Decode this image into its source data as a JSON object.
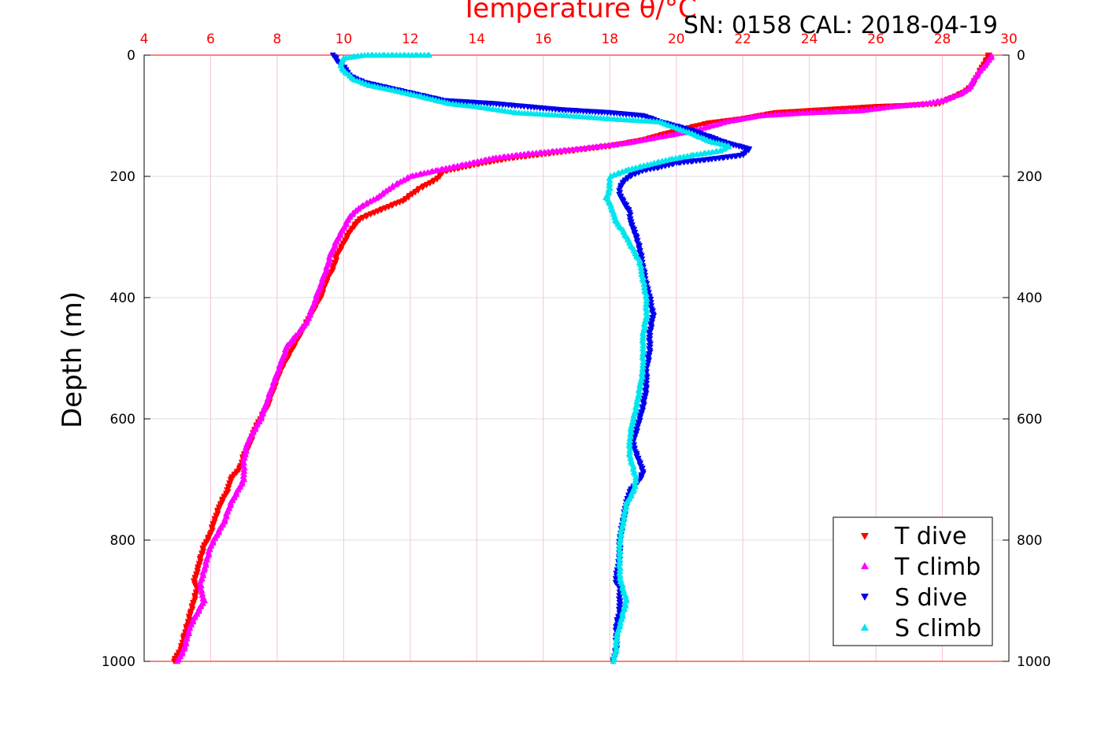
{
  "header": {
    "title": "Temperature θ/°C",
    "serial": "SN: 0158  CAL: 2018-04-19"
  },
  "chart_data": {
    "type": "scatter",
    "title": "Temperature θ/°C",
    "xlabel": "Temperature θ/°C",
    "ylabel": "Depth (m)",
    "xlim": [
      4,
      30
    ],
    "ylim": [
      1000,
      0
    ],
    "x_axis_position": "top",
    "y_axis_reversed": true,
    "grid": true,
    "legend_position": "bottom-right",
    "xticks": [
      "4",
      "6",
      "8",
      "10",
      "12",
      "14",
      "16",
      "18",
      "20",
      "22",
      "24",
      "26",
      "28",
      "30"
    ],
    "yticks": [
      "0",
      "200",
      "400",
      "600",
      "800",
      "1000"
    ],
    "colors": {
      "axis": "#ff0000",
      "grid": "#f4c4d8",
      "hgrid": "#dddddd"
    },
    "series": [
      {
        "name": "T dive",
        "color": "#ff0000",
        "marker": "triangle-down",
        "points": [
          [
            29.4,
            0
          ],
          [
            29.3,
            10
          ],
          [
            29.1,
            30
          ],
          [
            28.9,
            50
          ],
          [
            28.7,
            60
          ],
          [
            28.3,
            70
          ],
          [
            27.9,
            80
          ],
          [
            27.0,
            83
          ],
          [
            26.0,
            85
          ],
          [
            24.5,
            90
          ],
          [
            23.0,
            95
          ],
          [
            22.0,
            105
          ],
          [
            21.0,
            112
          ],
          [
            20.0,
            125
          ],
          [
            19.0,
            140
          ],
          [
            18.0,
            150
          ],
          [
            16.5,
            160
          ],
          [
            15.0,
            170
          ],
          [
            14.0,
            180
          ],
          [
            13.0,
            192
          ],
          [
            12.8,
            205
          ],
          [
            12.3,
            220
          ],
          [
            11.8,
            240
          ],
          [
            11.0,
            258
          ],
          [
            10.5,
            270
          ],
          [
            10.2,
            290
          ],
          [
            10.0,
            310
          ],
          [
            9.8,
            330
          ],
          [
            9.7,
            350
          ],
          [
            9.5,
            370
          ],
          [
            9.3,
            400
          ],
          [
            9.0,
            430
          ],
          [
            8.8,
            450
          ],
          [
            8.6,
            470
          ],
          [
            8.4,
            490
          ],
          [
            8.1,
            520
          ],
          [
            7.9,
            550
          ],
          [
            7.7,
            580
          ],
          [
            7.5,
            600
          ],
          [
            7.3,
            620
          ],
          [
            7.2,
            640
          ],
          [
            7.0,
            660
          ],
          [
            6.9,
            680
          ],
          [
            6.6,
            700
          ],
          [
            6.5,
            720
          ],
          [
            6.3,
            740
          ],
          [
            6.1,
            770
          ],
          [
            6.0,
            790
          ],
          [
            5.8,
            810
          ],
          [
            5.7,
            830
          ],
          [
            5.6,
            850
          ],
          [
            5.5,
            870
          ],
          [
            5.6,
            880
          ],
          [
            5.5,
            900
          ],
          [
            5.4,
            920
          ],
          [
            5.3,
            940
          ],
          [
            5.2,
            960
          ],
          [
            5.1,
            980
          ],
          [
            4.9,
            1000
          ]
        ]
      },
      {
        "name": "T climb",
        "color": "#ff00ff",
        "marker": "triangle-up",
        "points": [
          [
            29.5,
            0
          ],
          [
            29.3,
            15
          ],
          [
            29.0,
            35
          ],
          [
            28.8,
            55
          ],
          [
            28.5,
            65
          ],
          [
            28.0,
            75
          ],
          [
            27.5,
            80
          ],
          [
            26.5,
            85
          ],
          [
            25.5,
            92
          ],
          [
            24.0,
            95
          ],
          [
            22.5,
            100
          ],
          [
            21.5,
            110
          ],
          [
            20.5,
            125
          ],
          [
            19.5,
            135
          ],
          [
            18.5,
            145
          ],
          [
            17.0,
            155
          ],
          [
            15.5,
            163
          ],
          [
            14.5,
            170
          ],
          [
            13.5,
            182
          ],
          [
            12.8,
            190
          ],
          [
            12.0,
            200
          ],
          [
            11.5,
            215
          ],
          [
            11.0,
            235
          ],
          [
            10.5,
            250
          ],
          [
            10.2,
            265
          ],
          [
            10.0,
            285
          ],
          [
            9.8,
            305
          ],
          [
            9.6,
            330
          ],
          [
            9.5,
            350
          ],
          [
            9.3,
            380
          ],
          [
            9.1,
            410
          ],
          [
            8.9,
            440
          ],
          [
            8.6,
            460
          ],
          [
            8.3,
            480
          ],
          [
            8.1,
            510
          ],
          [
            7.9,
            540
          ],
          [
            7.7,
            570
          ],
          [
            7.5,
            600
          ],
          [
            7.3,
            620
          ],
          [
            7.1,
            640
          ],
          [
            7.0,
            670
          ],
          [
            7.0,
            700
          ],
          [
            6.8,
            720
          ],
          [
            6.6,
            740
          ],
          [
            6.4,
            770
          ],
          [
            6.2,
            790
          ],
          [
            6.0,
            810
          ],
          [
            5.9,
            830
          ],
          [
            5.8,
            850
          ],
          [
            5.7,
            870
          ],
          [
            5.7,
            880
          ],
          [
            5.8,
            900
          ],
          [
            5.6,
            920
          ],
          [
            5.4,
            940
          ],
          [
            5.3,
            960
          ],
          [
            5.2,
            980
          ],
          [
            5.0,
            1000
          ]
        ]
      },
      {
        "name": "S dive",
        "color": "#0000ee",
        "marker": "triangle-down",
        "points": [
          [
            9.7,
            0
          ],
          [
            9.8,
            10
          ],
          [
            10.0,
            20
          ],
          [
            10.2,
            35
          ],
          [
            10.6,
            45
          ],
          [
            11.4,
            55
          ],
          [
            12.2,
            65
          ],
          [
            13.0,
            75
          ],
          [
            14.5,
            80
          ],
          [
            15.5,
            85
          ],
          [
            16.5,
            90
          ],
          [
            18.0,
            95
          ],
          [
            19.0,
            100
          ],
          [
            19.5,
            110
          ],
          [
            20.5,
            125
          ],
          [
            21.0,
            135
          ],
          [
            21.5,
            145
          ],
          [
            22.2,
            155
          ],
          [
            22.0,
            165
          ],
          [
            21.0,
            172
          ],
          [
            20.0,
            178
          ],
          [
            19.5,
            185
          ],
          [
            19.0,
            190
          ],
          [
            18.6,
            200
          ],
          [
            18.4,
            210
          ],
          [
            18.3,
            220
          ],
          [
            18.3,
            230
          ],
          [
            18.4,
            240
          ],
          [
            18.5,
            250
          ],
          [
            18.6,
            260
          ],
          [
            18.6,
            270
          ],
          [
            18.7,
            285
          ],
          [
            18.8,
            300
          ],
          [
            18.9,
            320
          ],
          [
            19.0,
            350
          ],
          [
            19.1,
            380
          ],
          [
            19.2,
            400
          ],
          [
            19.3,
            430
          ],
          [
            19.2,
            460
          ],
          [
            19.2,
            490
          ],
          [
            19.1,
            520
          ],
          [
            19.1,
            550
          ],
          [
            19.0,
            580
          ],
          [
            18.9,
            600
          ],
          [
            18.8,
            620
          ],
          [
            18.7,
            640
          ],
          [
            18.8,
            660
          ],
          [
            18.9,
            670
          ],
          [
            19.0,
            690
          ],
          [
            18.9,
            700
          ],
          [
            18.6,
            720
          ],
          [
            18.5,
            740
          ],
          [
            18.4,
            770
          ],
          [
            18.3,
            800
          ],
          [
            18.3,
            830
          ],
          [
            18.2,
            860
          ],
          [
            18.2,
            870
          ],
          [
            18.3,
            880
          ],
          [
            18.3,
            900
          ],
          [
            18.3,
            920
          ],
          [
            18.2,
            940
          ],
          [
            18.2,
            960
          ],
          [
            18.2,
            980
          ],
          [
            18.1,
            1000
          ]
        ]
      },
      {
        "name": "S climb",
        "color": "#00e5ee",
        "marker": "triangle-up",
        "points": [
          [
            12.6,
            0
          ],
          [
            11.2,
            0
          ],
          [
            10.6,
            0
          ],
          [
            10.0,
            5
          ],
          [
            9.9,
            15
          ],
          [
            10.0,
            25
          ],
          [
            10.3,
            40
          ],
          [
            10.8,
            50
          ],
          [
            11.5,
            58
          ],
          [
            12.3,
            68
          ],
          [
            13.2,
            80
          ],
          [
            14.0,
            85
          ],
          [
            15.2,
            95
          ],
          [
            16.8,
            100
          ],
          [
            18.0,
            105
          ],
          [
            19.5,
            110
          ],
          [
            20.0,
            120
          ],
          [
            20.5,
            130
          ],
          [
            21.0,
            142
          ],
          [
            21.6,
            150
          ],
          [
            21.3,
            158
          ],
          [
            20.5,
            165
          ],
          [
            19.8,
            172
          ],
          [
            19.2,
            180
          ],
          [
            18.5,
            190
          ],
          [
            18.0,
            200
          ],
          [
            18.0,
            210
          ],
          [
            18.0,
            220
          ],
          [
            17.9,
            235
          ],
          [
            18.0,
            245
          ],
          [
            18.1,
            260
          ],
          [
            18.2,
            275
          ],
          [
            18.4,
            290
          ],
          [
            18.6,
            310
          ],
          [
            18.9,
            340
          ],
          [
            19.0,
            370
          ],
          [
            19.1,
            400
          ],
          [
            19.1,
            430
          ],
          [
            19.0,
            460
          ],
          [
            19.0,
            490
          ],
          [
            19.0,
            520
          ],
          [
            18.9,
            550
          ],
          [
            18.8,
            580
          ],
          [
            18.7,
            600
          ],
          [
            18.6,
            630
          ],
          [
            18.6,
            660
          ],
          [
            18.7,
            680
          ],
          [
            18.8,
            700
          ],
          [
            18.7,
            720
          ],
          [
            18.5,
            740
          ],
          [
            18.4,
            770
          ],
          [
            18.3,
            800
          ],
          [
            18.3,
            830
          ],
          [
            18.3,
            860
          ],
          [
            18.4,
            880
          ],
          [
            18.5,
            900
          ],
          [
            18.4,
            920
          ],
          [
            18.3,
            940
          ],
          [
            18.2,
            960
          ],
          [
            18.2,
            980
          ],
          [
            18.1,
            1000
          ]
        ]
      }
    ]
  }
}
